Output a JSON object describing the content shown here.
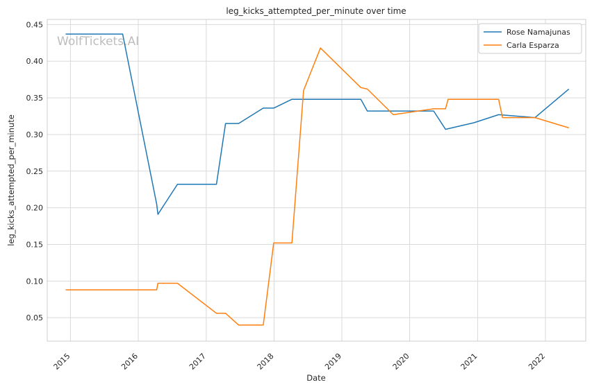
{
  "chart_data": {
    "type": "line",
    "title": "leg_kicks_attempted_per_minute over time",
    "xlabel": "Date",
    "ylabel": "leg_kicks_attempted_per_minute",
    "watermark": "WolfTickets.AI",
    "x_ticks": [
      "2015",
      "2016",
      "2017",
      "2018",
      "2019",
      "2020",
      "2021",
      "2022"
    ],
    "y_ticks": [
      "0.05",
      "0.10",
      "0.15",
      "0.20",
      "0.25",
      "0.30",
      "0.35",
      "0.40",
      "0.45"
    ],
    "xlim": [
      "2014-08-29",
      "2022-08-06"
    ],
    "ylim": [
      0.018,
      0.457
    ],
    "grid": true,
    "legend_position": "top-right",
    "series": [
      {
        "name": "Rose Namajunas",
        "color": "#1f77b4",
        "x": [
          "2014-12-06",
          "2015-10-09",
          "2016-04-09",
          "2016-04-16",
          "2016-07-30",
          "2017-02-25",
          "2017-04-15",
          "2017-06-24",
          "2017-11-04",
          "2017-12-30",
          "2018-04-07",
          "2018-06-09",
          "2019-04-13",
          "2019-05-18",
          "2019-10-05",
          "2020-05-09",
          "2020-07-12",
          "2020-12-12",
          "2021-04-24",
          "2021-11-06",
          "2022-05-07"
        ],
        "y": [
          0.437,
          0.437,
          0.205,
          0.191,
          0.232,
          0.232,
          0.315,
          0.315,
          0.336,
          0.336,
          0.348,
          0.348,
          0.348,
          0.332,
          0.332,
          0.332,
          0.307,
          0.316,
          0.327,
          0.323,
          0.362
        ]
      },
      {
        "name": "Carla Esparza",
        "color": "#ff7f0e",
        "x": [
          "2014-12-06",
          "2016-04-09",
          "2016-04-16",
          "2016-07-30",
          "2017-02-25",
          "2017-04-15",
          "2017-06-24",
          "2017-11-04",
          "2017-12-30",
          "2018-04-07",
          "2018-06-09",
          "2018-09-08",
          "2019-04-13",
          "2019-05-18",
          "2019-10-05",
          "2020-05-09",
          "2020-07-12",
          "2020-07-26",
          "2021-04-24",
          "2021-05-15",
          "2021-11-06",
          "2022-05-07"
        ],
        "y": [
          0.088,
          0.088,
          0.097,
          0.097,
          0.056,
          0.056,
          0.04,
          0.04,
          0.152,
          0.152,
          0.36,
          0.418,
          0.364,
          0.362,
          0.327,
          0.335,
          0.335,
          0.348,
          0.348,
          0.323,
          0.323,
          0.309
        ]
      }
    ]
  }
}
